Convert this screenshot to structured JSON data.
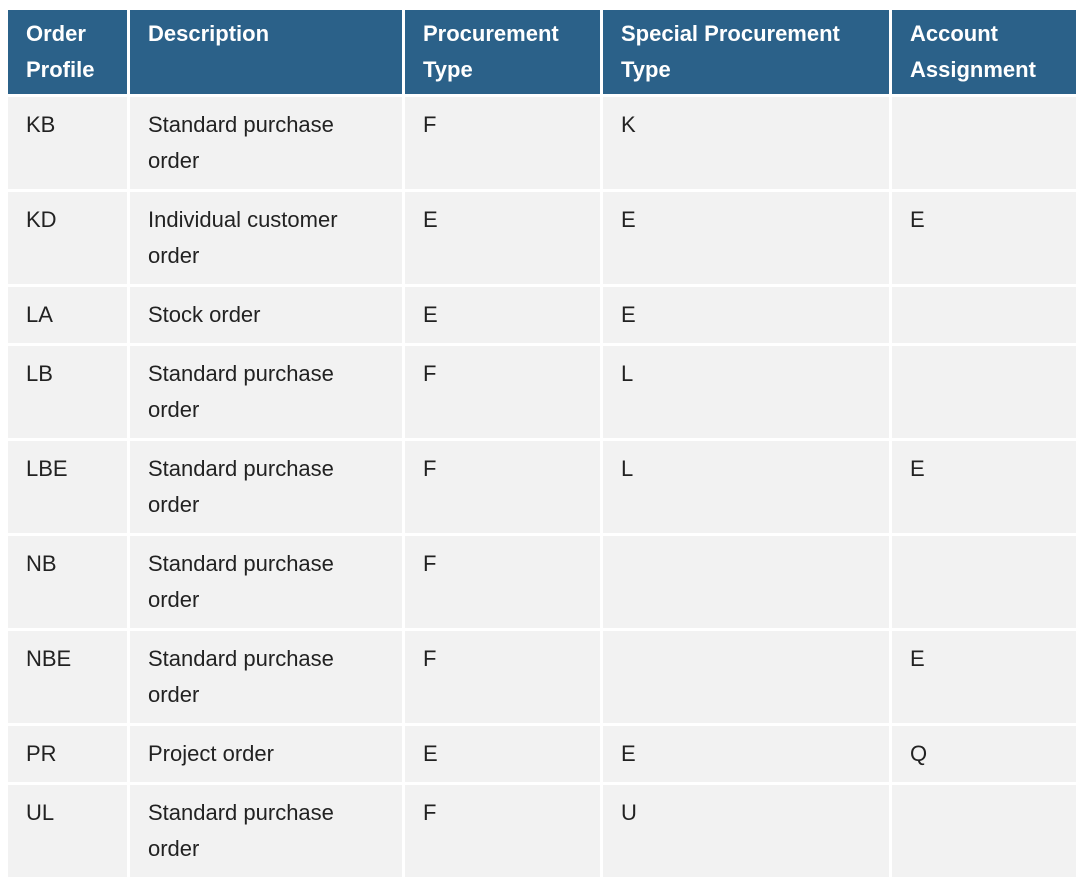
{
  "table": {
    "headers": [
      "Order Profile",
      "Description",
      "Procurement Type",
      "Special Procurement Type",
      "Account Assignment"
    ],
    "rows": [
      [
        "KB",
        "Standard purchase order",
        "F",
        "K",
        null
      ],
      [
        "KD",
        "Individual customer order",
        "E",
        "E",
        "E"
      ],
      [
        "LA",
        "Stock order",
        "E",
        "E",
        null
      ],
      [
        "LB",
        "Standard purchase order",
        "F",
        "L",
        null
      ],
      [
        "LBE",
        "Standard purchase order",
        "F",
        "L",
        "E"
      ],
      [
        "NB",
        "Standard purchase order",
        "F",
        null,
        null
      ],
      [
        "NBE",
        "Standard purchase order",
        "F",
        null,
        "E"
      ],
      [
        "PR",
        "Project order",
        "E",
        "E",
        "Q"
      ],
      [
        "UL",
        "Standard purchase order",
        "F",
        "U",
        null
      ]
    ]
  }
}
